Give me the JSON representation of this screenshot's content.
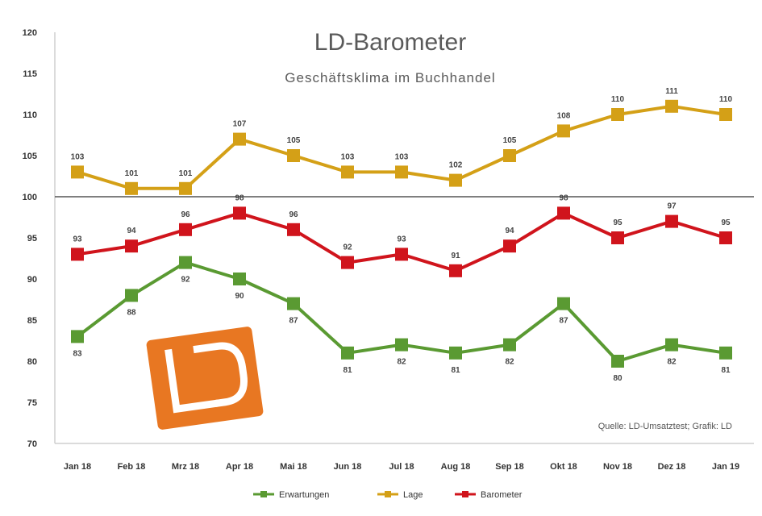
{
  "chart_data": {
    "type": "line",
    "title": "LD-Barometer",
    "subtitle": "Geschäftsklima im Buchhandel",
    "categories": [
      "Jan 18",
      "Feb 18",
      "Mrz 18",
      "Apr 18",
      "Mai 18",
      "Jun 18",
      "Jul 18",
      "Aug 18",
      "Sep 18",
      "Okt 18",
      "Nov 18",
      "Dez 18",
      "Jan 19"
    ],
    "y_ticks": [
      "70",
      "75",
      "80",
      "85",
      "90",
      "95",
      "100",
      "105",
      "110",
      "115",
      "120"
    ],
    "ylim": [
      70,
      120
    ],
    "baseline": 100,
    "grid": false,
    "legend_position": "bottom",
    "series": [
      {
        "name": "Erwartungen",
        "color": "#5a9a32",
        "values": [
          83,
          88,
          92,
          90,
          87,
          81,
          82,
          81,
          82,
          87,
          80,
          82,
          81
        ],
        "label_pos": "below"
      },
      {
        "name": "Lage",
        "color": "#d4a017",
        "values": [
          103,
          101,
          101,
          107,
          105,
          103,
          103,
          102,
          105,
          108,
          110,
          111,
          110
        ],
        "label_pos": "above"
      },
      {
        "name": "Barometer",
        "color": "#d0141c",
        "values": [
          93,
          94,
          96,
          98,
          96,
          92,
          93,
          91,
          94,
          98,
          95,
          97,
          95
        ],
        "label_pos": "above"
      }
    ],
    "source_note": "Quelle: LD-Umsatztest; Grafik: LD"
  },
  "logo": {
    "text": "LD",
    "color": "#e87722"
  }
}
